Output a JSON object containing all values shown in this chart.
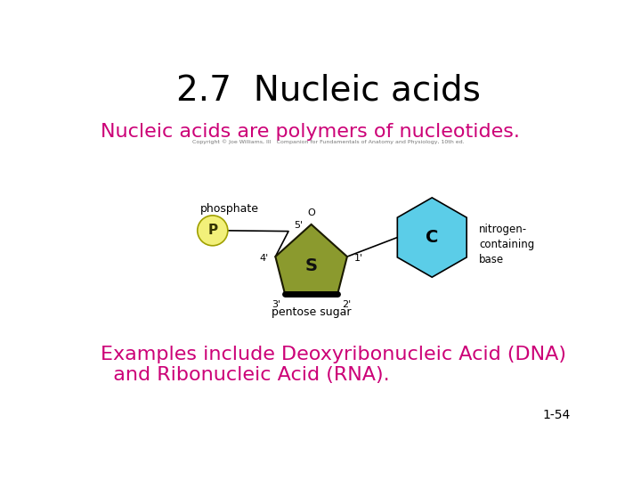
{
  "title": "2.7  Nucleic acids",
  "subtitle": "Nucleic acids are polymers of nucleotides.",
  "copyright": "Copyright © Joe Williams, III   Companion for Fundamentals of Anatomy and Physiology, 10th ed.",
  "body_line1": "Examples include Deoxyribonucleic Acid (DNA)",
  "body_line2": "  and Ribonucleic Acid (RNA).",
  "slide_number": "1-54",
  "background_color": "#ffffff",
  "title_color": "#000000",
  "subtitle_color": "#cc0077",
  "body_color": "#cc0077",
  "slide_num_color": "#000000",
  "phosphate_fill": "#f2f07a",
  "phosphate_edge": "#a0a000",
  "sugar_fill": "#8b9a2e",
  "sugar_edge": "#1a1a00",
  "base_fill": "#5bcde8",
  "base_edge": "#000000",
  "line_color": "#000000"
}
